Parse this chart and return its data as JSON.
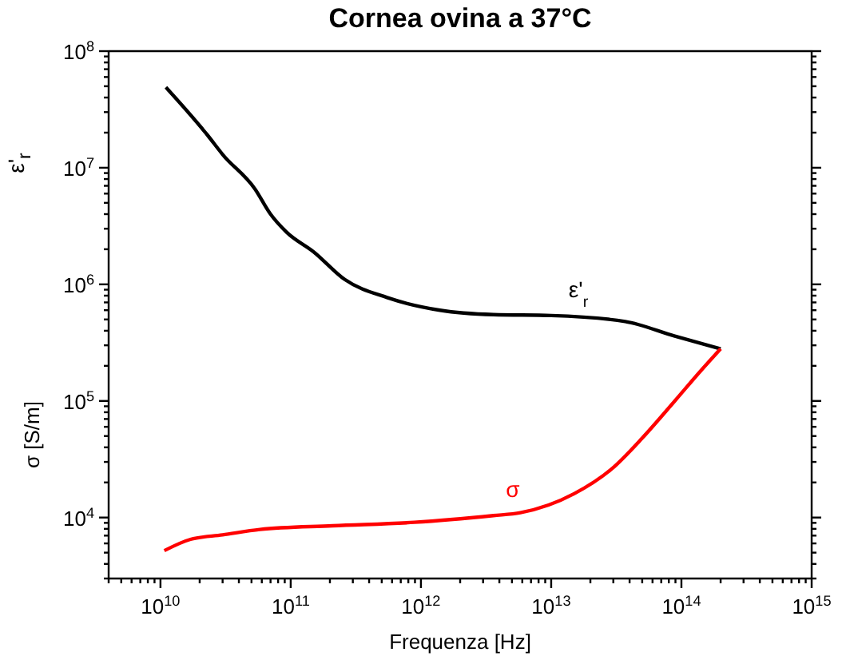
{
  "chart_data": {
    "type": "line",
    "title": "Cornea ovina a 37°C",
    "xlabel": "Frequenza [Hz]",
    "ylabel": "ε'$_{r}$",
    "log": "xy",
    "xlim": [
      4000000000.0,
      1000000000000000.0
    ],
    "ylim": [
      3000.0,
      100000000.0
    ],
    "xticks": [
      {
        "value": 4000000000.0,
        "label": null
      },
      {
        "value": 5000000000.0,
        "label": null
      },
      {
        "value": 6000000000.0,
        "label": null
      },
      {
        "value": 7000000000.0,
        "label": null
      },
      {
        "value": 8000000000.0,
        "label": null
      },
      {
        "value": 9000000000.0,
        "label": null
      },
      {
        "value": 10000000000.0,
        "label": "10$^{10}$"
      },
      {
        "value": 20000000000.0,
        "label": null
      },
      {
        "value": 30000000000.0,
        "label": null
      },
      {
        "value": 40000000000.0,
        "label": null
      },
      {
        "value": 50000000000.0,
        "label": null
      },
      {
        "value": 60000000000.0,
        "label": null
      },
      {
        "value": 70000000000.0,
        "label": null
      },
      {
        "value": 80000000000.0,
        "label": null
      },
      {
        "value": 90000000000.0,
        "label": null
      },
      {
        "value": 100000000000.0,
        "label": "10$^{11}$"
      },
      {
        "value": 200000000000.0,
        "label": null
      },
      {
        "value": 300000000000.0,
        "label": null
      },
      {
        "value": 400000000000.0,
        "label": null
      },
      {
        "value": 500000000000.0,
        "label": null
      },
      {
        "value": 600000000000.0,
        "label": null
      },
      {
        "value": 700000000000.0,
        "label": null
      },
      {
        "value": 800000000000.0,
        "label": null
      },
      {
        "value": 900000000000.0,
        "label": null
      },
      {
        "value": 1000000000000.0,
        "label": "10$^{12}$"
      },
      {
        "value": 2000000000000.0,
        "label": null
      },
      {
        "value": 3000000000000.0,
        "label": null
      },
      {
        "value": 4000000000000.0,
        "label": null
      },
      {
        "value": 5000000000000.0,
        "label": null
      },
      {
        "value": 6000000000000.0,
        "label": null
      },
      {
        "value": 7000000000000.0,
        "label": null
      },
      {
        "value": 8000000000000.0,
        "label": null
      },
      {
        "value": 9000000000000.0,
        "label": null
      },
      {
        "value": 10000000000000.0,
        "label": "10$^{13}$"
      },
      {
        "value": 20000000000000.0,
        "label": null
      },
      {
        "value": 30000000000000.0,
        "label": null
      },
      {
        "value": 40000000000000.0,
        "label": null
      },
      {
        "value": 50000000000000.0,
        "label": null
      },
      {
        "value": 60000000000000.0,
        "label": null
      },
      {
        "value": 70000000000000.0,
        "label": null
      },
      {
        "value": 80000000000000.0,
        "label": null
      },
      {
        "value": 90000000000000.0,
        "label": null
      },
      {
        "value": 100000000000000.0,
        "label": "10$^{14}$"
      },
      {
        "value": 200000000000000.0,
        "label": null
      },
      {
        "value": 300000000000000.0,
        "label": null
      },
      {
        "value": 400000000000000.0,
        "label": null
      },
      {
        "value": 500000000000000.0,
        "label": null
      },
      {
        "value": 600000000000000.0,
        "label": null
      },
      {
        "value": 700000000000000.0,
        "label": null
      },
      {
        "value": 800000000000000.0,
        "label": null
      },
      {
        "value": 900000000000000.0,
        "label": null
      },
      {
        "value": 1000000000000000.0,
        "label": "10$^{15}$"
      }
    ],
    "yticks": [
      {
        "value": 3000.0,
        "label": null
      },
      {
        "value": 4000.0,
        "label": null
      },
      {
        "value": 5000.0,
        "label": null
      },
      {
        "value": 6000.0,
        "label": null
      },
      {
        "value": 7000.0,
        "label": null
      },
      {
        "value": 8000.0,
        "label": null
      },
      {
        "value": 9000.0,
        "label": null
      },
      {
        "value": 10000.0,
        "label": "10$^{4}$"
      },
      {
        "value": 20000.0,
        "label": null
      },
      {
        "value": 30000.0,
        "label": null
      },
      {
        "value": 40000.0,
        "label": null
      },
      {
        "value": 50000.0,
        "label": null
      },
      {
        "value": 60000.0,
        "label": null
      },
      {
        "value": 70000.0,
        "label": null
      },
      {
        "value": 80000.0,
        "label": null
      },
      {
        "value": 90000.0,
        "label": null
      },
      {
        "value": 100000.0,
        "label": "10$^{5}$"
      },
      {
        "value": 200000.0,
        "label": null
      },
      {
        "value": 300000.0,
        "label": null
      },
      {
        "value": 400000.0,
        "label": null
      },
      {
        "value": 500000.0,
        "label": null
      },
      {
        "value": 600000.0,
        "label": null
      },
      {
        "value": 700000.0,
        "label": null
      },
      {
        "value": 800000.0,
        "label": null
      },
      {
        "value": 900000.0,
        "label": null
      },
      {
        "value": 1000000.0,
        "label": "10$^{6}$"
      },
      {
        "value": 2000000.0,
        "label": null
      },
      {
        "value": 3000000.0,
        "label": null
      },
      {
        "value": 4000000.0,
        "label": null
      },
      {
        "value": 5000000.0,
        "label": null
      },
      {
        "value": 6000000.0,
        "label": null
      },
      {
        "value": 7000000.0,
        "label": null
      },
      {
        "value": 8000000.0,
        "label": null
      },
      {
        "value": 9000000.0,
        "label": null
      },
      {
        "value": 10000000.0,
        "label": "10$^{7}$"
      },
      {
        "value": 20000000.0,
        "label": null
      },
      {
        "value": 30000000.0,
        "label": null
      },
      {
        "value": 40000000.0,
        "label": null
      },
      {
        "value": 50000000.0,
        "label": null
      },
      {
        "value": 60000000.0,
        "label": null
      },
      {
        "value": 70000000.0,
        "label": null
      },
      {
        "value": 80000000.0,
        "label": null
      },
      {
        "value": 90000000.0,
        "label": null
      },
      {
        "value": 100000000.0,
        "label": "10$^{8}$"
      }
    ],
    "series": [
      {
        "name": "ε'$_{r}$",
        "color": "#000000",
        "x": [
          11000000000.0,
          23000000000.0,
          30000000000.0,
          53000000000.0,
          70000000000.0,
          93000000000.0,
          150000000000.0,
          260000000000.0,
          550000000000.0,
          1400000000000.0,
          3600000000000.0,
          10000000000000.0,
          37000000000000.0,
          89000000000000.0,
          200000000000000.0
        ],
        "values": [
          49000000.0,
          19000000.0,
          13000000.0,
          6600000.0,
          4000000.0,
          2800000.0,
          1900000.0,
          1100000.0,
          770000.0,
          600000.0,
          550000.0,
          540000.0,
          480000.0,
          360000.0,
          280000.0
        ]
      },
      {
        "name": "σ",
        "color": "#ff0000",
        "x": [
          10700000000.0,
          17000000000.0,
          30000000000.0,
          58000000000.0,
          210000000000.0,
          890000000000.0,
          3600000000000.0,
          5800000000000.0,
          15000000000000.0,
          29000000000000.0,
          50000000000000.0,
          89000000000000.0,
          140000000000000.0,
          200000000000000.0
        ],
        "values": [
          5200.0,
          6500.0,
          7100.0,
          7900.0,
          8500.0,
          9100.0,
          10400.0,
          11000.0,
          16000.0,
          26000.0,
          48000.0,
          100000.0,
          180000.0,
          280000.0
        ]
      }
    ],
    "annotations": [
      "σ [S/m]"
    ]
  }
}
